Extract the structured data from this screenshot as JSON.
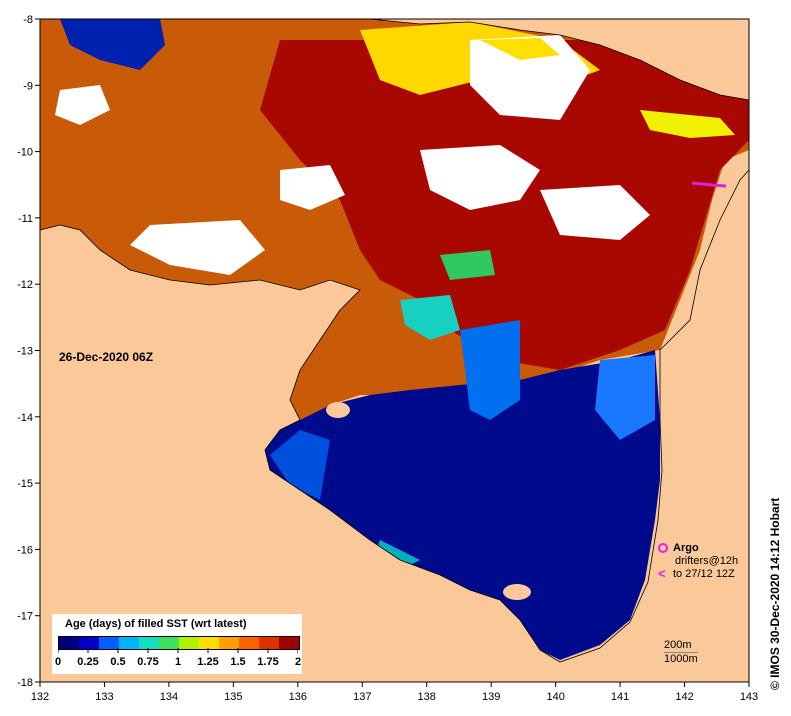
{
  "map": {
    "date_label": "26-Dec-2020 06Z",
    "x_ticks": [
      "132",
      "133",
      "134",
      "135",
      "136",
      "137",
      "138",
      "139",
      "140",
      "141",
      "142",
      "143"
    ],
    "y_ticks": [
      "-8",
      "-9",
      "-10",
      "-11",
      "-12",
      "-13",
      "-14",
      "-15",
      "-16",
      "-17",
      "-18"
    ],
    "land_color": "#fbc999",
    "cloud_color": "#ffffff"
  },
  "legend": {
    "title": "Age (days) of filled SST (wrt latest)",
    "labels": [
      "0",
      "0.25",
      "0.5",
      "0.75",
      "1",
      "1.25",
      "1.5",
      "1.75",
      "2"
    ],
    "colors": [
      "#00007f",
      "#0000c8",
      "#0060ff",
      "#00b4ff",
      "#10e0c0",
      "#40e060",
      "#b0f000",
      "#ffe000",
      "#ffa000",
      "#ff6000",
      "#e03000",
      "#a00000"
    ]
  },
  "markers": {
    "argo_label": "Argo",
    "drifters_label": "drifters@12h",
    "drifters_date": "to 27/12 12Z"
  },
  "depth": {
    "contour_1": "200m",
    "contour_2": "1000m"
  },
  "credit": "© IMOS 30-Dec-2020 14:12 Hobart"
}
